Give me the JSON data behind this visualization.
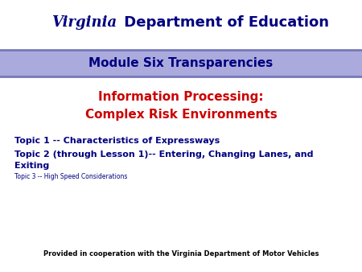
{
  "background_color": "#ffffff",
  "header_bar_color": "#aaaadd",
  "header_bar_top_line_color": "#7777bb",
  "header_bar_bottom_line_color": "#7777bb",
  "header_text": "Module Six Transparencies",
  "header_text_color": "#000080",
  "title_line1": "Information Processing:",
  "title_line2": "Complex Risk Environments",
  "title_color": "#cc0000",
  "virginia_text": "Virginia",
  "doe_text": " Department of Education",
  "virginia_color": "#000080",
  "doe_color": "#000080",
  "topic1": "Topic 1 -- Characteristics of Expressways",
  "topic2_line1": "Topic 2 (through Lesson 1)-- Entering, Changing Lanes, and",
  "topic2_line2": "Exiting",
  "topic3": "Topic 3 -- High Speed Considerations",
  "topic_color": "#000080",
  "footer_text": "Provided in cooperation with the Virginia Department of Motor Vehicles",
  "footer_color": "#000000",
  "fig_width": 4.5,
  "fig_height": 3.38,
  "dpi": 100
}
